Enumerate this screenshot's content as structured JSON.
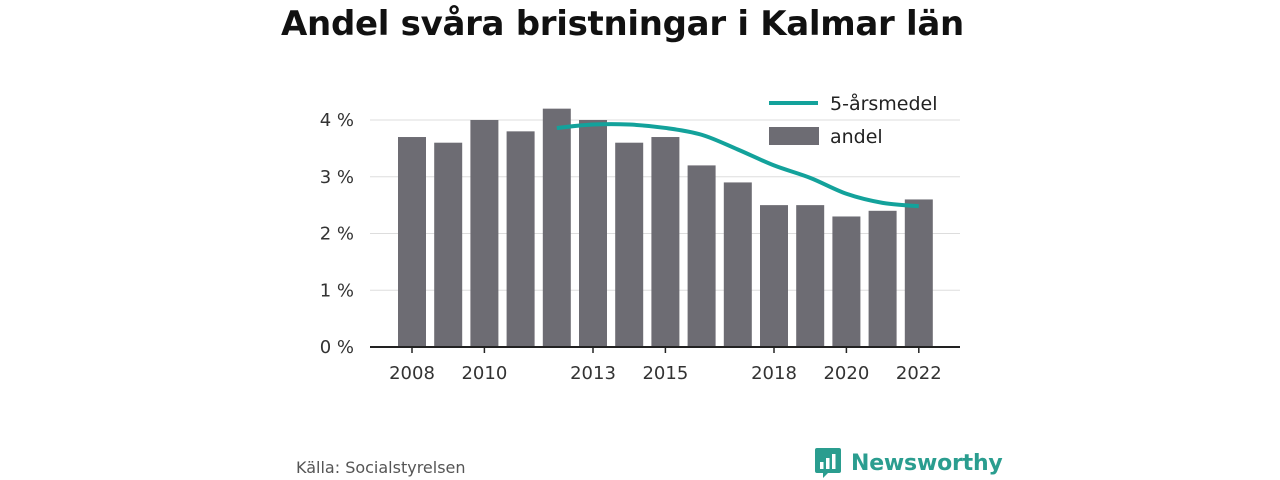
{
  "title": "Andel svåra bristningar i Kalmar län",
  "source": "Källa: Socialstyrelsen",
  "brand": {
    "name": "Newsworthy",
    "icon": "bar-chart-bubble-icon"
  },
  "colors": {
    "bar": "#6d6c73",
    "line": "#13a29b",
    "axis": "#222222",
    "grid": "#dddddd",
    "brand": "#2a9d8f"
  },
  "chart_data": {
    "type": "bar",
    "title": "Andel svåra bristningar i Kalmar län",
    "x": [
      2008,
      2009,
      2010,
      2011,
      2012,
      2013,
      2014,
      2015,
      2016,
      2017,
      2018,
      2019,
      2020,
      2021,
      2022
    ],
    "x_tick_labels": [
      "2008",
      "2010",
      "2013",
      "2015",
      "2018",
      "2020",
      "2022"
    ],
    "x_tick_values": [
      2008,
      2010,
      2013,
      2015,
      2018,
      2020,
      2022
    ],
    "ylim": [
      0,
      4
    ],
    "y_ticks": [
      0,
      1,
      2,
      3,
      4
    ],
    "y_tick_labels": [
      "0 %",
      "1 %",
      "2 %",
      "3 %",
      "4 %"
    ],
    "grid": true,
    "legend": "top-right",
    "series": [
      {
        "name": "andel",
        "type": "bar",
        "values": [
          3.7,
          3.6,
          4.0,
          3.8,
          4.2,
          4.0,
          3.6,
          3.7,
          3.2,
          2.9,
          2.5,
          2.5,
          2.3,
          2.4,
          2.6
        ]
      },
      {
        "name": "5-årsmedel",
        "type": "line",
        "x": [
          2012,
          2013,
          2014,
          2015,
          2016,
          2017,
          2018,
          2019,
          2020,
          2021,
          2022
        ],
        "values": [
          3.86,
          3.92,
          3.92,
          3.86,
          3.74,
          3.48,
          3.2,
          2.98,
          2.7,
          2.54,
          2.48
        ]
      }
    ]
  }
}
